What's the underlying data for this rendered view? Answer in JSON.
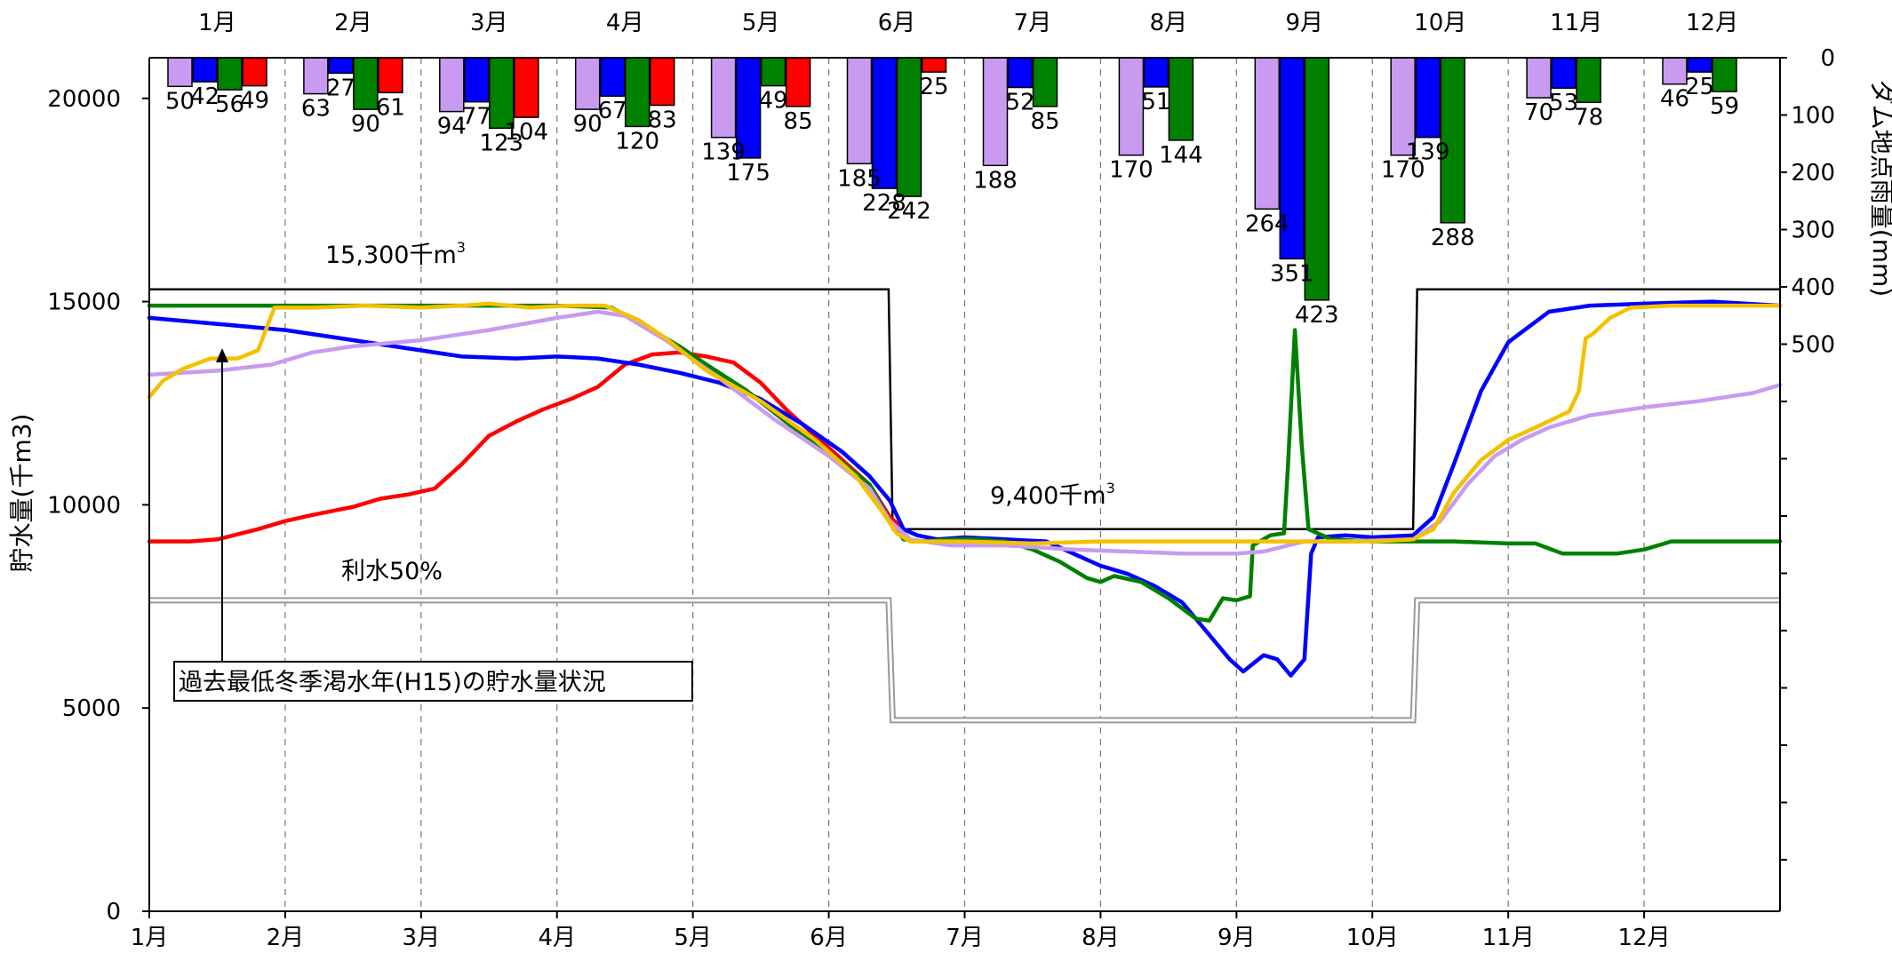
{
  "chart_data": {
    "type": "line",
    "title": "",
    "xlabel": "",
    "ylabel": "貯水量(千m3)",
    "y2label": "ダム地点雨量(mm)",
    "xlim": [
      0,
      12
    ],
    "ylim": [
      0,
      21000
    ],
    "y2lim": [
      0,
      1500
    ],
    "y_ticks": [
      0,
      5000,
      10000,
      15000,
      20000
    ],
    "y2_tick_labels": [
      0,
      100,
      200,
      300,
      400,
      500
    ],
    "months": [
      "1月",
      "2月",
      "3月",
      "4月",
      "5月",
      "6月",
      "7月",
      "8月",
      "9月",
      "10月",
      "11月",
      "12月"
    ],
    "rainfall": {
      "colors": [
        "#c89bf0",
        "#0000ff",
        "#008000",
        "#ff0000"
      ],
      "values": [
        [
          50,
          42,
          56,
          49
        ],
        [
          63,
          27,
          90,
          61
        ],
        [
          94,
          77,
          123,
          104
        ],
        [
          90,
          67,
          120,
          83
        ],
        [
          139,
          175,
          49,
          85
        ],
        [
          185,
          228,
          242,
          25
        ],
        [
          188,
          52,
          85,
          null
        ],
        [
          170,
          51,
          144,
          null
        ],
        [
          264,
          351,
          423,
          null
        ],
        [
          170,
          139,
          288,
          null
        ],
        [
          70,
          53,
          78,
          null
        ],
        [
          46,
          25,
          59,
          null
        ]
      ]
    },
    "reference_lines": [
      {
        "name": "upper",
        "color": "#000000",
        "points": [
          [
            0,
            15300
          ],
          [
            5.44,
            15300
          ],
          [
            5.47,
            9400
          ],
          [
            9.3,
            9400
          ],
          [
            9.33,
            15300
          ],
          [
            12,
            15300
          ]
        ]
      },
      {
        "name": "lower",
        "color": "#a0a0a0",
        "points": [
          [
            0,
            7650
          ],
          [
            5.44,
            7650
          ],
          [
            5.47,
            4700
          ],
          [
            9.3,
            4700
          ],
          [
            9.33,
            7650
          ],
          [
            12,
            7650
          ]
        ]
      }
    ],
    "annotations": {
      "upper_capacity": "15,300千m",
      "lower_capacity": "9,400千m",
      "superscript": "3",
      "water_use_50": "利水50%",
      "callout": "過去最低冬季渇水年(H15)の貯水量状況"
    },
    "series": [
      {
        "color": "#ff0000",
        "points": [
          [
            0,
            9100
          ],
          [
            0.3,
            9100
          ],
          [
            0.5,
            9150
          ],
          [
            0.8,
            9400
          ],
          [
            1,
            9600
          ],
          [
            1.2,
            9750
          ],
          [
            1.5,
            9950
          ],
          [
            1.7,
            10150
          ],
          [
            1.9,
            10250
          ],
          [
            2.1,
            10400
          ],
          [
            2.3,
            11000
          ],
          [
            2.5,
            11700
          ],
          [
            2.7,
            12050
          ],
          [
            2.9,
            12350
          ],
          [
            3.1,
            12600
          ],
          [
            3.3,
            12900
          ],
          [
            3.5,
            13450
          ],
          [
            3.7,
            13700
          ],
          [
            3.9,
            13750
          ],
          [
            4.1,
            13650
          ],
          [
            4.3,
            13500
          ],
          [
            4.5,
            13000
          ],
          [
            4.7,
            12300
          ],
          [
            4.9,
            11700
          ],
          [
            5.1,
            11100
          ],
          [
            5.3,
            10500
          ],
          [
            5.45,
            9700
          ],
          [
            5.55,
            9400
          ]
        ]
      },
      {
        "color": "#0000ff",
        "points": [
          [
            0,
            14600
          ],
          [
            0.5,
            14450
          ],
          [
            1,
            14300
          ],
          [
            1.5,
            14050
          ],
          [
            2,
            13800
          ],
          [
            2.3,
            13650
          ],
          [
            2.7,
            13600
          ],
          [
            3,
            13650
          ],
          [
            3.3,
            13600
          ],
          [
            3.6,
            13450
          ],
          [
            3.9,
            13250
          ],
          [
            4.2,
            13000
          ],
          [
            4.5,
            12600
          ],
          [
            4.8,
            12000
          ],
          [
            5.1,
            11300
          ],
          [
            5.3,
            10700
          ],
          [
            5.45,
            10100
          ],
          [
            5.55,
            9400
          ],
          [
            5.65,
            9250
          ],
          [
            5.8,
            9150
          ],
          [
            6,
            9200
          ],
          [
            6.3,
            9150
          ],
          [
            6.6,
            9100
          ],
          [
            6.8,
            8800
          ],
          [
            7.0,
            8500
          ],
          [
            7.2,
            8300
          ],
          [
            7.4,
            8000
          ],
          [
            7.6,
            7600
          ],
          [
            7.8,
            6800
          ],
          [
            7.95,
            6200
          ],
          [
            8.05,
            5900
          ],
          [
            8.2,
            6300
          ],
          [
            8.3,
            6200
          ],
          [
            8.4,
            5800
          ],
          [
            8.5,
            6200
          ],
          [
            8.55,
            8800
          ],
          [
            8.6,
            9200
          ],
          [
            8.8,
            9250
          ],
          [
            9,
            9200
          ],
          [
            9.3,
            9250
          ],
          [
            9.45,
            9700
          ],
          [
            9.6,
            11000
          ],
          [
            9.8,
            12800
          ],
          [
            10,
            14000
          ],
          [
            10.3,
            14750
          ],
          [
            10.6,
            14900
          ],
          [
            11,
            14950
          ],
          [
            11.5,
            15000
          ],
          [
            12,
            14900
          ]
        ]
      },
      {
        "color": "#008000",
        "points": [
          [
            0,
            14900
          ],
          [
            0.5,
            14900
          ],
          [
            1,
            14900
          ],
          [
            1.5,
            14900
          ],
          [
            2,
            14900
          ],
          [
            2.5,
            14900
          ],
          [
            3,
            14900
          ],
          [
            3.4,
            14850
          ],
          [
            3.6,
            14500
          ],
          [
            3.9,
            13900
          ],
          [
            4.1,
            13450
          ],
          [
            4.4,
            12800
          ],
          [
            4.7,
            12000
          ],
          [
            5,
            11300
          ],
          [
            5.3,
            10500
          ],
          [
            5.45,
            9600
          ],
          [
            5.55,
            9150
          ],
          [
            5.7,
            9100
          ],
          [
            5.9,
            9150
          ],
          [
            6.1,
            9150
          ],
          [
            6.3,
            9100
          ],
          [
            6.5,
            8900
          ],
          [
            6.7,
            8600
          ],
          [
            6.9,
            8200
          ],
          [
            7.0,
            8100
          ],
          [
            7.1,
            8250
          ],
          [
            7.3,
            8100
          ],
          [
            7.5,
            7700
          ],
          [
            7.7,
            7200
          ],
          [
            7.8,
            7150
          ],
          [
            7.9,
            7700
          ],
          [
            8.0,
            7650
          ],
          [
            8.1,
            7750
          ],
          [
            8.12,
            9000
          ],
          [
            8.25,
            9250
          ],
          [
            8.35,
            9300
          ],
          [
            8.38,
            11000
          ],
          [
            8.43,
            14300
          ],
          [
            8.48,
            11500
          ],
          [
            8.53,
            9400
          ],
          [
            8.7,
            9150
          ],
          [
            9,
            9100
          ],
          [
            9.3,
            9100
          ],
          [
            9.6,
            9100
          ],
          [
            10,
            9050
          ],
          [
            10.2,
            9050
          ],
          [
            10.4,
            8800
          ],
          [
            10.8,
            8800
          ],
          [
            11,
            8900
          ],
          [
            11.2,
            9100
          ],
          [
            12,
            9100
          ]
        ]
      },
      {
        "color": "#c89bf0",
        "points": [
          [
            0,
            13200
          ],
          [
            0.5,
            13300
          ],
          [
            0.9,
            13450
          ],
          [
            1.2,
            13750
          ],
          [
            1.5,
            13900
          ],
          [
            2,
            14050
          ],
          [
            2.5,
            14300
          ],
          [
            3,
            14600
          ],
          [
            3.3,
            14750
          ],
          [
            3.5,
            14650
          ],
          [
            3.8,
            14050
          ],
          [
            4.2,
            13100
          ],
          [
            4.6,
            12100
          ],
          [
            5,
            11200
          ],
          [
            5.3,
            10400
          ],
          [
            5.45,
            9600
          ],
          [
            5.6,
            9150
          ],
          [
            5.9,
            9000
          ],
          [
            6.3,
            9000
          ],
          [
            6.8,
            8900
          ],
          [
            7.2,
            8850
          ],
          [
            7.6,
            8800
          ],
          [
            8,
            8800
          ],
          [
            8.2,
            8850
          ],
          [
            8.5,
            9100
          ],
          [
            8.8,
            9100
          ],
          [
            9.3,
            9150
          ],
          [
            9.5,
            9600
          ],
          [
            9.7,
            10500
          ],
          [
            9.9,
            11200
          ],
          [
            10.1,
            11600
          ],
          [
            10.3,
            11900
          ],
          [
            10.6,
            12200
          ],
          [
            11,
            12400
          ],
          [
            11.4,
            12550
          ],
          [
            11.8,
            12750
          ],
          [
            12,
            12950
          ]
        ]
      },
      {
        "color": "#f5c000",
        "points": [
          [
            0,
            12650
          ],
          [
            0.1,
            13050
          ],
          [
            0.25,
            13350
          ],
          [
            0.45,
            13600
          ],
          [
            0.65,
            13600
          ],
          [
            0.8,
            13800
          ],
          [
            0.88,
            14500
          ],
          [
            0.92,
            14850
          ],
          [
            1.2,
            14850
          ],
          [
            1.6,
            14900
          ],
          [
            2,
            14850
          ],
          [
            2.3,
            14900
          ],
          [
            2.5,
            14950
          ],
          [
            2.8,
            14850
          ],
          [
            3.1,
            14900
          ],
          [
            3.35,
            14900
          ],
          [
            3.6,
            14550
          ],
          [
            3.8,
            14100
          ],
          [
            4.1,
            13300
          ],
          [
            4.5,
            12550
          ],
          [
            4.9,
            11600
          ],
          [
            5.2,
            10700
          ],
          [
            5.4,
            9800
          ],
          [
            5.5,
            9300
          ],
          [
            5.6,
            9100
          ],
          [
            6,
            9100
          ],
          [
            6.5,
            9050
          ],
          [
            7,
            9100
          ],
          [
            7.5,
            9100
          ],
          [
            8,
            9100
          ],
          [
            8.5,
            9100
          ],
          [
            9,
            9100
          ],
          [
            9.3,
            9150
          ],
          [
            9.45,
            9400
          ],
          [
            9.6,
            10300
          ],
          [
            9.8,
            11100
          ],
          [
            10,
            11600
          ],
          [
            10.2,
            11900
          ],
          [
            10.45,
            12300
          ],
          [
            10.52,
            12800
          ],
          [
            10.57,
            14100
          ],
          [
            10.62,
            14200
          ],
          [
            10.75,
            14600
          ],
          [
            10.9,
            14850
          ],
          [
            11.2,
            14900
          ],
          [
            11.6,
            14900
          ],
          [
            12,
            14900
          ]
        ]
      }
    ]
  }
}
